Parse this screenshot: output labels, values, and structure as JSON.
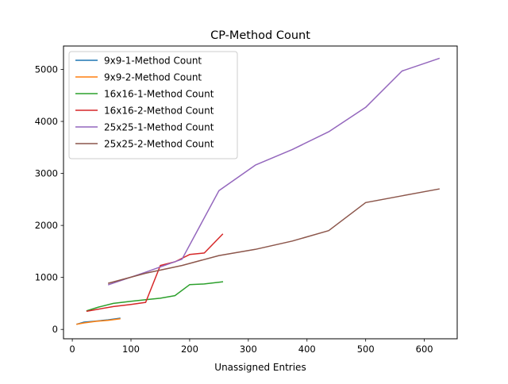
{
  "chart_data": {
    "type": "line",
    "title": "CP-Method Count",
    "xlabel": "Unassigned Entries",
    "ylabel": "",
    "xlim": [
      -15,
      656
    ],
    "ylim": [
      -180,
      5450
    ],
    "xticks": [
      0,
      100,
      200,
      300,
      400,
      500,
      600
    ],
    "yticks": [
      0,
      1000,
      2000,
      3000,
      4000,
      5000
    ],
    "grid": false,
    "legend_position": "top-left",
    "series": [
      {
        "name": "9x9-1-Method Count",
        "color": "#1f77b4",
        "x": [
          8,
          20,
          40,
          61,
          81
        ],
        "y": [
          100,
          140,
          160,
          185,
          215
        ]
      },
      {
        "name": "9x9-2-Method Count",
        "color": "#ff7f0e",
        "x": [
          8,
          20,
          40,
          61,
          81
        ],
        "y": [
          100,
          125,
          155,
          175,
          205
        ]
      },
      {
        "name": "16x16-1-Method Count",
        "color": "#2ca02c",
        "x": [
          25,
          45,
          70,
          100,
          125,
          150,
          175,
          200,
          225,
          256
        ],
        "y": [
          360,
          430,
          500,
          540,
          570,
          600,
          650,
          860,
          875,
          915
        ]
      },
      {
        "name": "16x16-2-Method Count",
        "color": "#d62728",
        "x": [
          25,
          45,
          70,
          100,
          125,
          150,
          175,
          200,
          225,
          256
        ],
        "y": [
          350,
          390,
          440,
          480,
          520,
          1230,
          1300,
          1440,
          1470,
          1830
        ]
      },
      {
        "name": "25x25-1-Method Count",
        "color": "#9467bd",
        "x": [
          62,
          125,
          187,
          250,
          312,
          375,
          437,
          500,
          562,
          625
        ],
        "y": [
          860,
          1100,
          1350,
          2670,
          3160,
          3460,
          3800,
          4270,
          4970,
          5210
        ]
      },
      {
        "name": "25x25-2-Method Count",
        "color": "#8c564b",
        "x": [
          62,
          125,
          187,
          250,
          312,
          375,
          437,
          500,
          562,
          625
        ],
        "y": [
          890,
          1080,
          1230,
          1420,
          1540,
          1700,
          1900,
          2440,
          2570,
          2700
        ]
      }
    ]
  }
}
